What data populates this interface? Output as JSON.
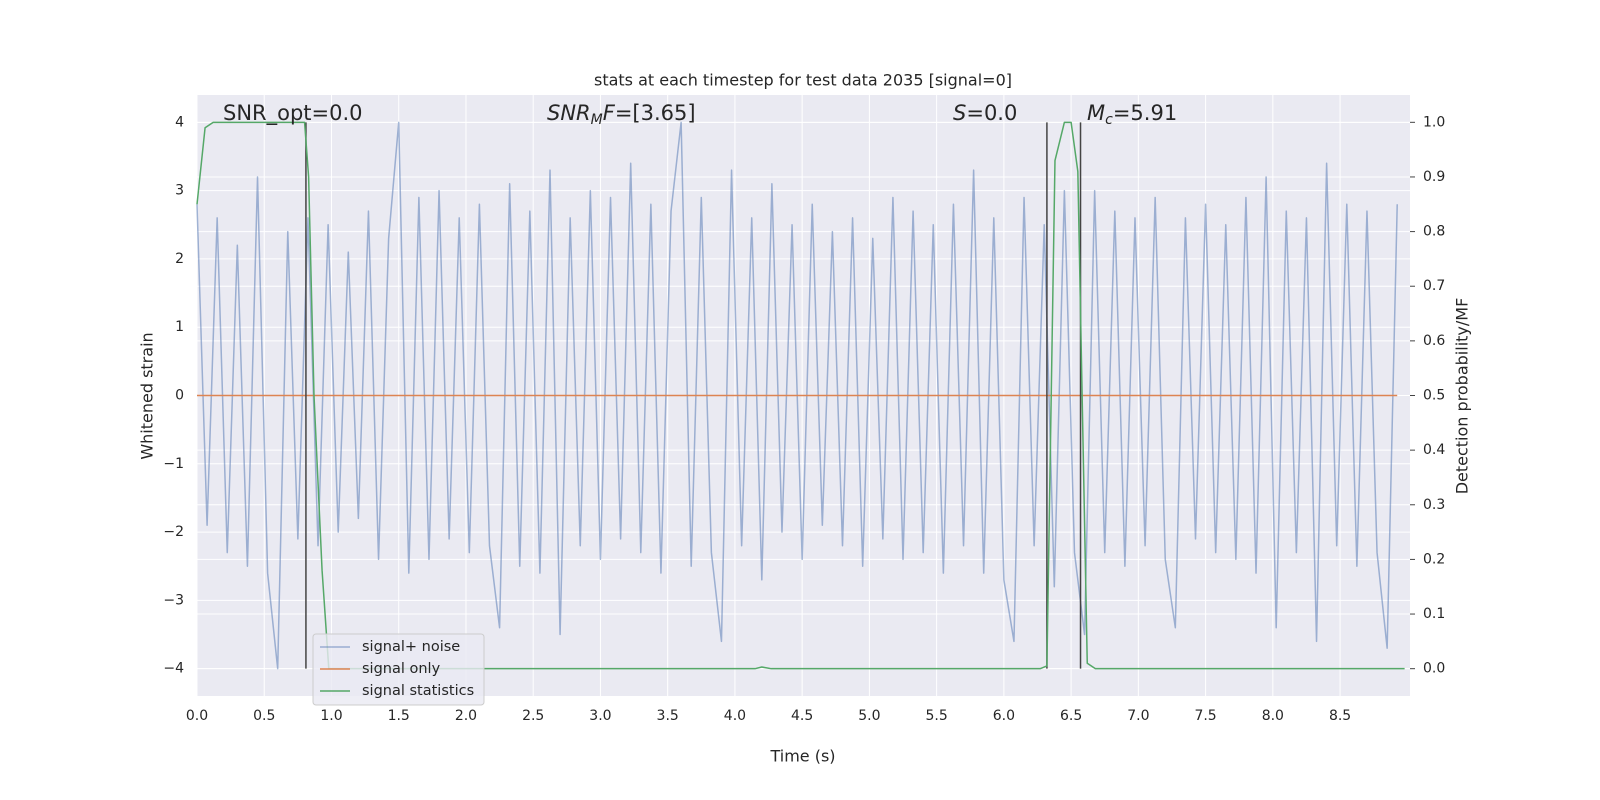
{
  "chart_data": {
    "type": "line",
    "title": "stats at each timestep for test data 2035 [signal=0]",
    "xlabel": "Time (s)",
    "ylabel": "Whitened strain",
    "y2label": "Detection probability/MF",
    "xlim": [
      0,
      9.02
    ],
    "ylim": [
      -4.4,
      4.4
    ],
    "y2lim": [
      -0.05,
      1.05
    ],
    "xticks": [
      {
        "value": 0,
        "label": "0.0"
      },
      0.5,
      {
        "value": 1,
        "label": "1.0"
      },
      1.5,
      {
        "value": 2,
        "label": "2.0"
      },
      2.5,
      {
        "value": 3,
        "label": "3.0"
      },
      3.5,
      {
        "value": 4,
        "label": "4.0"
      },
      4.5,
      {
        "value": 5,
        "label": "5.0"
      },
      5.5,
      {
        "value": 6,
        "label": "6.0"
      },
      6.5,
      {
        "value": 7,
        "label": "7.0"
      },
      7.5,
      {
        "value": 8,
        "label": "8.0"
      },
      8.5
    ],
    "yticks": [
      {
        "value": -4,
        "label": "−4"
      },
      {
        "value": -3,
        "label": "−3"
      },
      {
        "value": -2,
        "label": "−2"
      },
      {
        "value": -1,
        "label": "−1"
      },
      0,
      1,
      2,
      3,
      4
    ],
    "y2ticks": [
      {
        "value": 0,
        "label": "0.0"
      },
      0.1,
      0.2,
      0.3,
      0.4,
      0.5,
      0.6,
      0.7,
      0.8,
      0.9,
      {
        "value": 1,
        "label": "1.0"
      }
    ],
    "grid": true,
    "annotations": [
      [
        {
          "text": "SNR_opt=0.0"
        }
      ],
      [
        {
          "text": "SNR",
          "style": "italic"
        },
        {
          "text": "M",
          "style": "sub"
        },
        {
          "text": "F",
          "style": "italic"
        },
        {
          "text": "=[3.65]"
        }
      ],
      [
        {
          "text": "S",
          "style": "italic"
        },
        {
          "text": "=0.0"
        }
      ],
      [
        {
          "text": "M",
          "style": "italic"
        },
        {
          "text": "c",
          "style": "sub"
        },
        {
          "text": "=5.91"
        }
      ]
    ],
    "vlines": [
      0.81,
      6.32,
      6.57
    ],
    "vline_color": "#444444",
    "series": [
      {
        "name": "signal+ noise",
        "color": "#4c72b0",
        "opacity": 0.5,
        "x": [
          0,
          0.075,
          0.15,
          0.225,
          0.3,
          0.375,
          0.45,
          0.525,
          0.6,
          0.675,
          0.75,
          0.825,
          0.9,
          0.975,
          1.05,
          1.125,
          1.2,
          1.275,
          1.35,
          1.425,
          1.5,
          1.575,
          1.65,
          1.725,
          1.8,
          1.875,
          1.95,
          2.025,
          2.1,
          2.175,
          2.25,
          2.325,
          2.4,
          2.475,
          2.55,
          2.625,
          2.7,
          2.775,
          2.85,
          2.925,
          3,
          3.075,
          3.15,
          3.225,
          3.3,
          3.375,
          3.45,
          3.525,
          3.6,
          3.675,
          3.75,
          3.825,
          3.9,
          3.975,
          4.05,
          4.125,
          4.2,
          4.275,
          4.35,
          4.425,
          4.5,
          4.575,
          4.65,
          4.725,
          4.8,
          4.875,
          4.95,
          5.025,
          5.1,
          5.175,
          5.25,
          5.325,
          5.4,
          5.475,
          5.55,
          5.625,
          5.7,
          5.775,
          5.85,
          5.925,
          6,
          6.075,
          6.15,
          6.225,
          6.3,
          6.375,
          6.45,
          6.525,
          6.6,
          6.675,
          6.75,
          6.825,
          6.9,
          6.975,
          7.05,
          7.125,
          7.2,
          7.275,
          7.35,
          7.425,
          7.5,
          7.575,
          7.65,
          7.725,
          7.8,
          7.875,
          7.95,
          8.025,
          8.1,
          8.175,
          8.25,
          8.325,
          8.4,
          8.475,
          8.55,
          8.625,
          8.7,
          8.775,
          8.85,
          8.925
        ],
        "values": [
          2.8,
          -1.9,
          2.6,
          -2.3,
          2.2,
          -2.5,
          3.2,
          -2.6,
          -4.0,
          2.4,
          -2.1,
          2.6,
          -2.2,
          2.5,
          -2.0,
          2.1,
          -1.8,
          2.7,
          -2.4,
          2.3,
          4.0,
          -2.6,
          2.9,
          -2.4,
          3.0,
          -2.1,
          2.6,
          -2.3,
          2.8,
          -2.2,
          -3.4,
          3.1,
          -2.5,
          2.7,
          -2.6,
          3.3,
          -3.5,
          2.6,
          -2.2,
          3.0,
          -2.4,
          2.9,
          -2.1,
          3.4,
          -2.3,
          2.8,
          -2.6,
          2.7,
          4.0,
          -2.5,
          2.9,
          -2.3,
          -3.6,
          3.3,
          -2.2,
          2.6,
          -2.7,
          3.1,
          -2.0,
          2.5,
          -2.4,
          2.8,
          -1.9,
          2.4,
          -2.2,
          2.6,
          -2.5,
          2.3,
          -2.1,
          2.9,
          -2.4,
          2.7,
          -2.3,
          2.5,
          -2.6,
          2.8,
          -2.2,
          3.3,
          -2.6,
          2.6,
          -2.7,
          -3.6,
          2.9,
          -2.2,
          2.5,
          -2.8,
          3.0,
          -2.3,
          -3.5,
          3.0,
          -2.3,
          2.7,
          -2.5,
          2.6,
          -2.2,
          2.9,
          -2.4,
          -3.4,
          2.6,
          -2.1,
          2.8,
          -2.3,
          2.5,
          -2.4,
          2.9,
          -2.6,
          3.2,
          -3.4,
          2.7,
          -2.3,
          2.6,
          -3.6,
          3.4,
          -2.2,
          2.8,
          -2.5,
          2.7,
          -2.3,
          -3.7,
          2.8
        ]
      },
      {
        "name": "signal only",
        "color": "#dd8452",
        "x": [
          0,
          8.925
        ],
        "values": [
          0,
          0
        ]
      },
      {
        "name": "signal statistics",
        "color": "#55a868",
        "axis": "y2",
        "x": [
          0,
          0.06,
          0.12,
          0.8,
          0.83,
          0.87,
          0.93,
          0.98,
          4.15,
          4.2,
          4.27,
          6.27,
          6.32,
          6.38,
          6.45,
          6.5,
          6.55,
          6.62,
          6.68,
          8.98
        ],
        "values": [
          0.85,
          0.99,
          1.0,
          1.0,
          0.9,
          0.5,
          0.18,
          0.0,
          0.0,
          0.003,
          0.0,
          0.0,
          0.005,
          0.93,
          1.0,
          1.0,
          0.91,
          0.01,
          0.0,
          0.0
        ]
      }
    ]
  }
}
